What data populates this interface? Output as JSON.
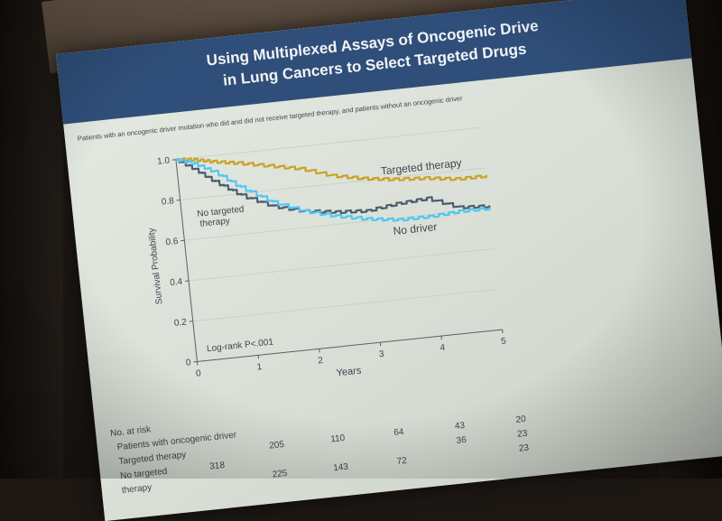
{
  "slide": {
    "title_line1": "Using Multiplexed Assays of Oncogenic Drive",
    "title_line2": "in Lung Cancers to Select Targeted Drugs",
    "subtitle": "Patients with an oncogenic driver mutation who did and did not receive targeted therapy, and patients without an oncogenic driver",
    "header_color": "#2f4f7a",
    "logrank": "Log-rank P<.001"
  },
  "chart_data": {
    "type": "line",
    "xlabel": "Years",
    "ylabel": "Survival Probability",
    "xlim": [
      0,
      5
    ],
    "ylim": [
      0,
      1.0
    ],
    "xticks": [
      "0",
      "1",
      "2",
      "3",
      "4",
      "5"
    ],
    "yticks": [
      "0",
      "0.2",
      "0.4",
      "0.6",
      "0.8",
      "1.0"
    ],
    "series": [
      {
        "name": "Targeted therapy",
        "color": "#c9a227",
        "x": [
          0,
          0.3,
          0.6,
          1.0,
          1.5,
          2.0,
          2.5,
          3.0,
          3.5,
          4.0,
          4.5,
          5.0
        ],
        "y": [
          1.0,
          0.99,
          0.97,
          0.95,
          0.92,
          0.89,
          0.84,
          0.81,
          0.79,
          0.78,
          0.76,
          0.76
        ]
      },
      {
        "name": "No targeted therapy",
        "color": "#4d5a6e",
        "x": [
          0,
          0.3,
          0.6,
          1.0,
          1.5,
          2.0,
          2.5,
          3.0,
          3.5,
          4.0,
          4.5,
          5.0
        ],
        "y": [
          1.0,
          0.94,
          0.87,
          0.79,
          0.72,
          0.68,
          0.66,
          0.65,
          0.67,
          0.68,
          0.62,
          0.61
        ]
      },
      {
        "name": "No driver",
        "color": "#4fc8f2",
        "x": [
          0,
          0.3,
          0.6,
          1.0,
          1.5,
          2.0,
          2.5,
          3.0,
          3.5,
          4.0,
          4.5,
          5.0
        ],
        "y": [
          1.0,
          0.97,
          0.92,
          0.83,
          0.74,
          0.68,
          0.64,
          0.61,
          0.59,
          0.59,
          0.6,
          0.6
        ]
      }
    ],
    "labels": {
      "targeted": "Targeted therapy",
      "no_targeted_1": "No targeted",
      "no_targeted_2": "therapy",
      "no_driver": "No driver"
    }
  },
  "risk_table": {
    "heading": "No. at risk",
    "rows": [
      {
        "label": "Patients with oncogenic driver",
        "values": [
          "",
          "",
          "",
          "",
          "",
          ""
        ]
      },
      {
        "label": "Targeted therapy",
        "values": [
          "",
          "205",
          "110",
          "64",
          "43",
          "20"
        ]
      },
      {
        "label": "No targeted",
        "values": [
          "318",
          "",
          "",
          "",
          "36",
          "23"
        ]
      },
      {
        "label": "therapy",
        "values": [
          "",
          "225",
          "143",
          "72",
          "",
          "23"
        ]
      }
    ]
  }
}
